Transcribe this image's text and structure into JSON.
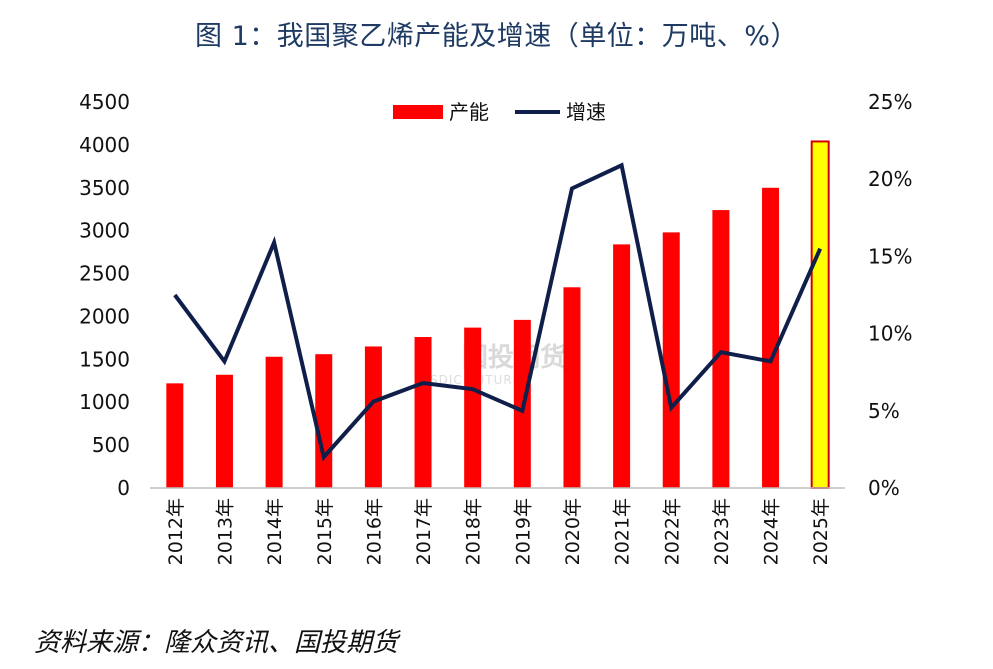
{
  "title": "图 1：我国聚乙烯产能及增速（单位：万吨、%）",
  "source": "资料来源：隆众资讯、国投期货",
  "watermark": {
    "text": "国投期货",
    "sub": "SDIC FUTURES"
  },
  "colors": {
    "bar": "#ff0000",
    "bar_highlight": "#ffff00",
    "bar_highlight_stroke": "#d40000",
    "line": "#0f1f4a",
    "title": "#1f3b63"
  },
  "chart_data": {
    "type": "bar",
    "categories": [
      "2012年",
      "2013年",
      "2014年",
      "2015年",
      "2016年",
      "2017年",
      "2018年",
      "2019年",
      "2020年",
      "2021年",
      "2022年",
      "2023年",
      "2024年",
      "2025年"
    ],
    "series": [
      {
        "name": "产能",
        "axis": "left",
        "type": "bar",
        "values": [
          1220,
          1320,
          1530,
          1560,
          1650,
          1760,
          1870,
          1960,
          2340,
          2840,
          2980,
          3240,
          3500,
          4040
        ]
      },
      {
        "name": "增速",
        "axis": "right",
        "type": "line",
        "unit": "%",
        "values": [
          12.5,
          8.2,
          15.9,
          2.0,
          5.6,
          6.8,
          6.4,
          5.0,
          19.4,
          20.9,
          5.2,
          8.8,
          8.2,
          15.5
        ]
      }
    ],
    "highlight_index": 13,
    "y_left": {
      "ticks": [
        "0",
        "500",
        "1000",
        "1500",
        "2000",
        "2500",
        "3000",
        "3500",
        "4000",
        "4500"
      ],
      "lim": [
        0,
        4500
      ]
    },
    "y_right": {
      "ticks": [
        "0%",
        "5%",
        "10%",
        "15%",
        "20%",
        "25%"
      ],
      "lim": [
        0,
        25
      ]
    },
    "legend": {
      "position": "top-center"
    },
    "grid": false
  }
}
